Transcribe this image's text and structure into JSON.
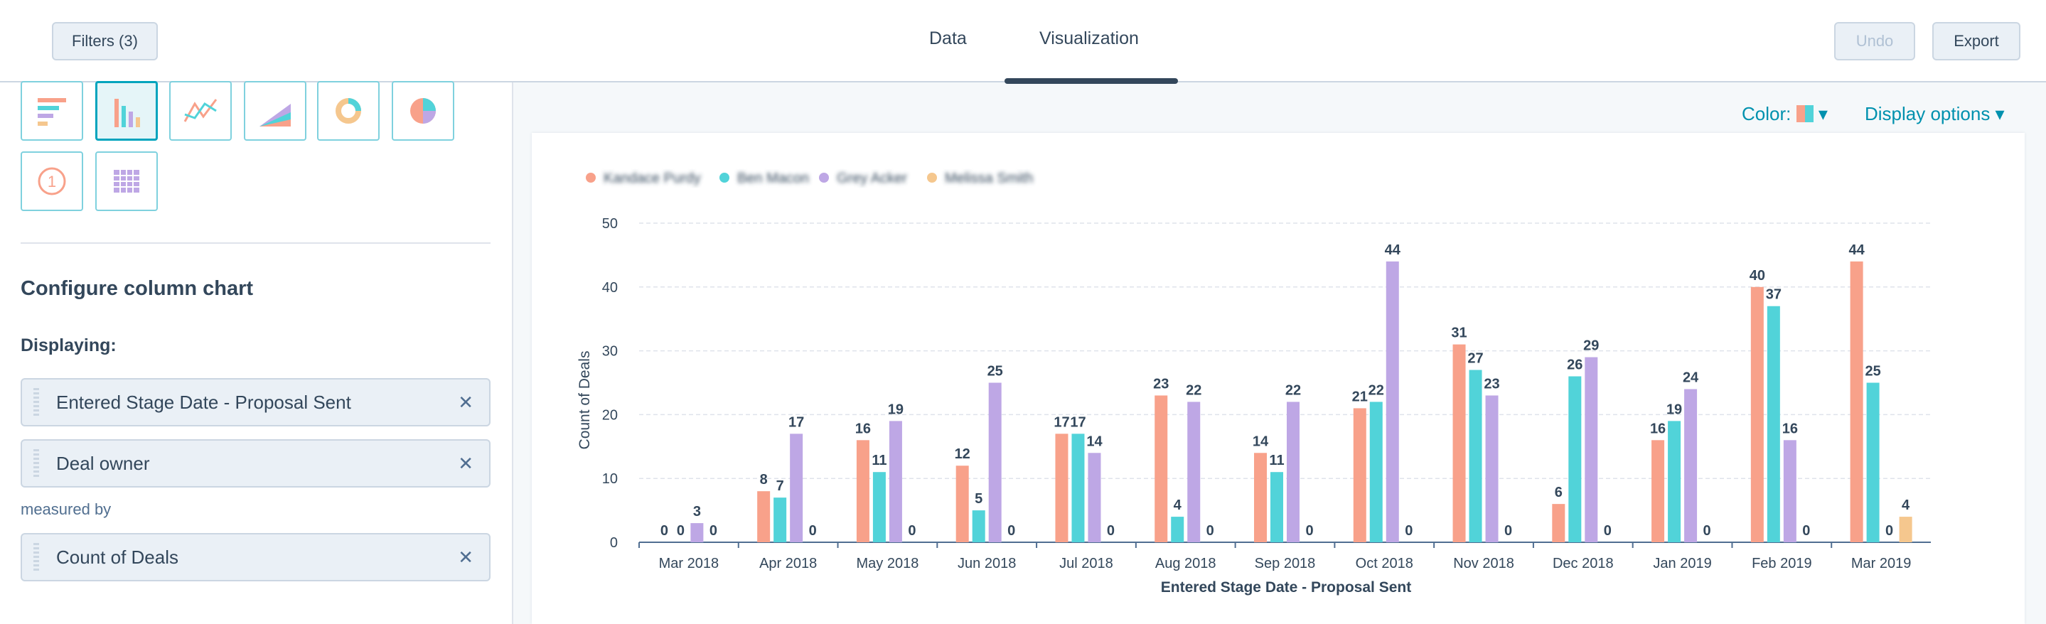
{
  "toolbar": {
    "filters": "Filters (3)",
    "tabs": [
      "Data",
      "Visualization"
    ],
    "undo": "Undo",
    "export": "Export"
  },
  "sidebar": {
    "title": "Configure column chart",
    "displaying": "Displaying:",
    "pills": [
      "Entered Stage Date - Proposal Sent",
      "Deal owner"
    ],
    "measured_by": "measured by",
    "measure": "Count of Deals",
    "number_icon": "1"
  },
  "chart_options": {
    "color": "Color:",
    "display_options": "Display options"
  },
  "chart_data": {
    "type": "bar",
    "ylabel": "Count of Deals",
    "xlabel": "Entered Stage Date - Proposal Sent",
    "categories": [
      "Mar 2018",
      "Apr 2018",
      "May 2018",
      "Jun 2018",
      "Jul 2018",
      "Aug 2018",
      "Sep 2018",
      "Oct 2018",
      "Nov 2018",
      "Dec 2018",
      "Jan 2019",
      "Feb 2019",
      "Mar 2019"
    ],
    "series": [
      {
        "name": "Kandace Purdy",
        "color": "#f8a18a",
        "values": [
          0,
          8,
          16,
          12,
          17,
          23,
          14,
          21,
          31,
          6,
          16,
          40,
          44
        ]
      },
      {
        "name": "Ben Macon",
        "color": "#51d3d9",
        "values": [
          0,
          7,
          11,
          5,
          17,
          4,
          11,
          22,
          27,
          26,
          19,
          37,
          25
        ]
      },
      {
        "name": "Grey Acker",
        "color": "#bea7e5",
        "values": [
          3,
          17,
          19,
          25,
          14,
          22,
          22,
          44,
          23,
          29,
          24,
          16,
          0
        ]
      },
      {
        "name": "Melissa Smith",
        "color": "#f5c78e",
        "values": [
          0,
          0,
          0,
          0,
          0,
          0,
          0,
          0,
          0,
          0,
          0,
          0,
          4
        ]
      }
    ],
    "ylim": [
      0,
      50
    ],
    "yticks": [
      0,
      10,
      20,
      30,
      40,
      50
    ],
    "grid": true,
    "legend": "top-left"
  }
}
